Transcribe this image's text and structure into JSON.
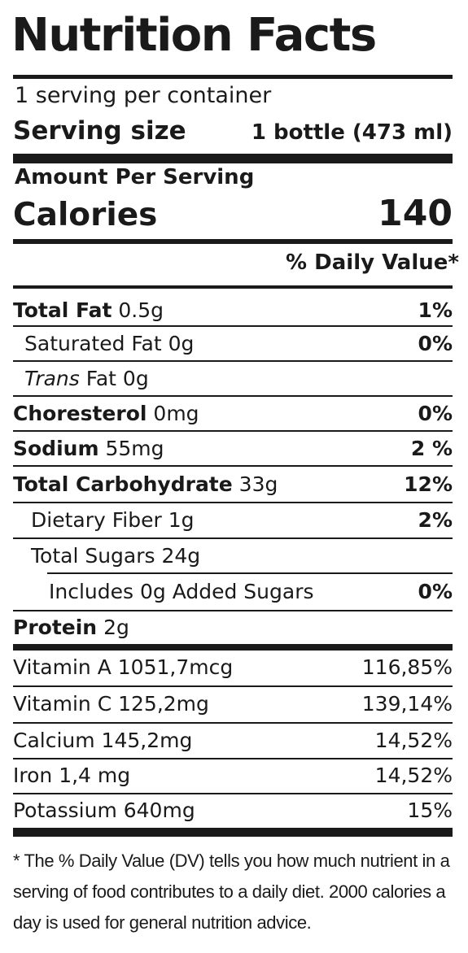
{
  "label": {
    "title": "Nutrition Facts",
    "servings_per_container": "1 serving per container",
    "serving_size_label": "Serving size",
    "serving_size_value": "1 bottle (473 ml)",
    "amount_per_serving": "Amount Per Serving",
    "calories_label": "Calories",
    "calories_value": "140",
    "daily_value_header": "% Daily Value*"
  },
  "nutrients": [
    {
      "name": "Total Fat",
      "amount": "0.5g",
      "dv": "1%"
    },
    {
      "name": "Saturated Fat",
      "amount": "0g",
      "dv": "0%"
    },
    {
      "name": "Trans",
      "amount": "Fat 0g",
      "dv": ""
    },
    {
      "name": "Choresterol",
      "amount": "0mg",
      "dv": "0%"
    },
    {
      "name": "Sodium",
      "amount": "55mg",
      "dv": "2 %"
    },
    {
      "name": "Total Carbohydrate",
      "amount": "33g",
      "dv": "12%"
    },
    {
      "name": "Dietary Fiber",
      "amount": "1g",
      "dv": "2%"
    },
    {
      "name": "Total Sugars",
      "amount": "24g",
      "dv": ""
    },
    {
      "name": "Includes 0g Added Sugars",
      "amount": "",
      "dv": "0%"
    },
    {
      "name": "Protein",
      "amount": "2g",
      "dv": ""
    }
  ],
  "vitamins": [
    {
      "name": "Vitamin A 1051,7mcg",
      "dv": "116,85%"
    },
    {
      "name": "Vitamin C 125,2mg",
      "dv": "139,14%"
    },
    {
      "name": "Calcium 145,2mg",
      "dv": "14,52%"
    },
    {
      "name": "Iron 1,4 mg",
      "dv": "14,52%"
    },
    {
      "name": "Potassium 640mg",
      "dv": "15%"
    }
  ],
  "footnote": "* The % Daily Value (DV) tells you how much nutrient in a serving of food contributes to a daily diet. 2000 calories a day is used for general nutrition advice."
}
